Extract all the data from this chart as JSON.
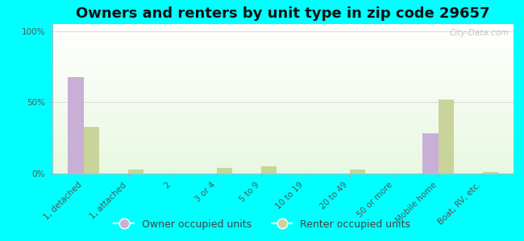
{
  "title": "Owners and renters by unit type in zip code 29657",
  "categories": [
    "1, detached",
    "1, attached",
    "2",
    "3 or 4",
    "5 to 9",
    "10 to 19",
    "20 to 49",
    "50 or more",
    "Mobile home",
    "Boat, RV, etc."
  ],
  "owner_values": [
    68,
    0,
    0,
    0,
    0,
    0,
    0,
    0,
    28,
    0
  ],
  "renter_values": [
    33,
    3,
    0,
    4,
    5,
    0,
    3,
    0,
    52,
    1
  ],
  "owner_color": "#c9aed6",
  "renter_color": "#c8d49a",
  "background_color": "#00ffff",
  "yticks": [
    0,
    50,
    100
  ],
  "ylabels": [
    "0%",
    "50%",
    "100%"
  ],
  "ylim": [
    0,
    105
  ],
  "bar_width": 0.35,
  "title_fontsize": 13,
  "tick_fontsize": 7.5,
  "legend_fontsize": 9,
  "watermark": "City-Data.com"
}
